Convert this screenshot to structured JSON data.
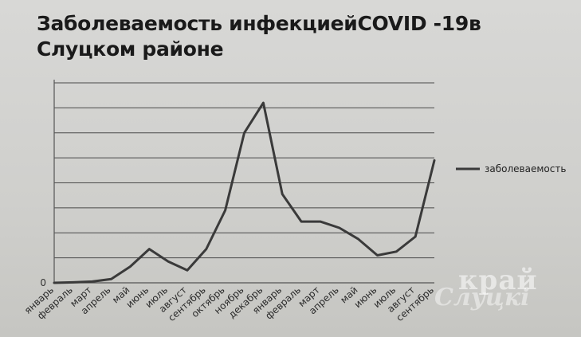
{
  "chart_data": {
    "type": "line",
    "title": "Заболеваемость инфекциейCOVID -19в Слуцком районе",
    "xlabel": "",
    "ylabel": "",
    "categories": [
      "январь",
      "февраль",
      "март",
      "апрель",
      "май",
      "июнь",
      "июль",
      "август",
      "сентябрь",
      "октябрь",
      "ноябрь",
      "декабрь",
      "январь",
      "февраль",
      "март",
      "апрель",
      "май",
      "июнь",
      "июль",
      "август",
      "сентябрь"
    ],
    "series": [
      {
        "name": "заболеваемость",
        "values": [
          0,
          0.2,
          0.5,
          1.5,
          6.5,
          13.5,
          8.5,
          5.0,
          13.5,
          29.0,
          60.0,
          72.0,
          35.5,
          24.5,
          24.5,
          22.0,
          17.5,
          11.0,
          12.5,
          18.5,
          49.0
        ]
      }
    ],
    "ylim": [
      0,
      80
    ],
    "y_tick_labels": [
      "0"
    ],
    "grid": true,
    "legend_position": "right",
    "line_color": "#3a3a3a"
  },
  "watermark": {
    "text_top": "край",
    "text_bottom": "Слуцкі"
  }
}
